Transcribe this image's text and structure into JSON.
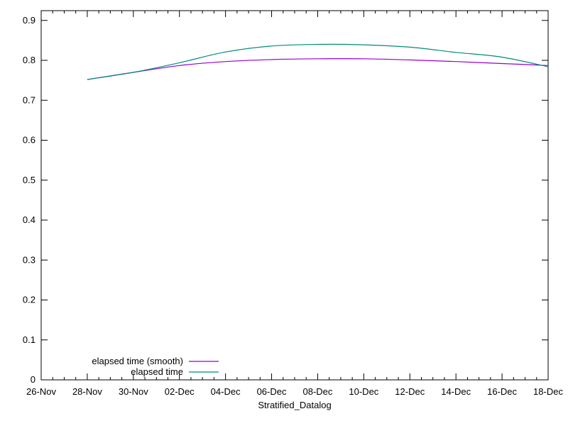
{
  "page": {
    "background": "#ffffff",
    "text_color": "#000000",
    "border_color": "#000000"
  },
  "chart_data": {
    "type": "line",
    "title": "",
    "xlabel": "Stratified_Datalog",
    "ylabel": "",
    "grid": false,
    "legend_position": "bottom-left-inside",
    "x_axis": {
      "unit": "date",
      "range_days": [
        0,
        22
      ],
      "major_step_days": 2,
      "minor_step_days": 0.5,
      "tick_labels": [
        "26-Nov",
        "28-Nov",
        "30-Nov",
        "02-Dec",
        "04-Dec",
        "06-Dec",
        "08-Dec",
        "10-Dec",
        "12-Dec",
        "14-Dec",
        "16-Dec",
        "18-Dec"
      ]
    },
    "y_axis": {
      "range": [
        0,
        0.9244
      ],
      "major_step": 0.1,
      "tick_values": [
        0,
        0.1,
        0.2,
        0.3,
        0.4,
        0.5,
        0.6,
        0.7,
        0.8,
        0.9
      ],
      "tick_labels": [
        "0",
        "0.1",
        "0.2",
        "0.3",
        "0.4",
        "0.5",
        "0.6",
        "0.7",
        "0.8",
        "0.9"
      ]
    },
    "sample_dates": [
      "28-Nov",
      "30-Nov",
      "02-Dec",
      "04-Dec",
      "06-Dec",
      "08-Dec",
      "10-Dec",
      "12-Dec",
      "14-Dec",
      "16-Dec",
      "18-Dec"
    ],
    "sample_days_since_26_nov": [
      2,
      4,
      6,
      8,
      10,
      12,
      14,
      16,
      18,
      20,
      22
    ],
    "series": [
      {
        "name": "elapsed time (smooth)",
        "color": "#9400d3",
        "values": [
          0.752,
          0.77,
          0.787,
          0.797,
          0.802,
          0.804,
          0.804,
          0.801,
          0.797,
          0.792,
          0.787
        ]
      },
      {
        "name": "elapsed time",
        "color": "#008c78",
        "values": [
          0.752,
          0.77,
          0.794,
          0.821,
          0.836,
          0.84,
          0.839,
          0.833,
          0.82,
          0.808,
          0.784
        ]
      }
    ]
  }
}
